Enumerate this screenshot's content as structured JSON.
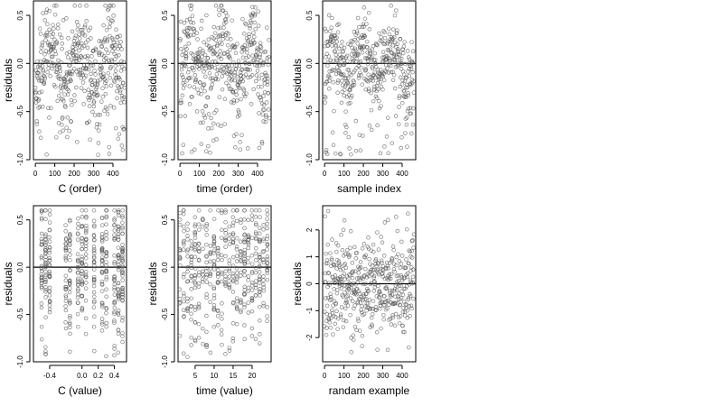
{
  "chart_data": [
    {
      "type": "scatter",
      "xlabel": "C (order)",
      "ylabel": "residuals",
      "xlim": [
        -10,
        470
      ],
      "ylim": [
        -1.0,
        0.65
      ],
      "xticks": [
        0,
        100,
        200,
        300,
        400
      ],
      "xticklabels": [
        "0",
        "100",
        "200",
        "300",
        "400"
      ],
      "yticks": [
        -1.0,
        -0.5,
        0.0,
        0.5
      ],
      "yticklabels": [
        "-1.0",
        "-0.5",
        "0.0",
        "0.5"
      ],
      "hline": 0,
      "n_points": 460,
      "pattern": "smooth",
      "x_range": [
        0,
        460
      ],
      "y_range": [
        -0.95,
        0.6
      ]
    },
    {
      "type": "scatter",
      "xlabel": "time (order)",
      "ylabel": "residuals",
      "xlim": [
        -10,
        470
      ],
      "ylim": [
        -1.0,
        0.65
      ],
      "xticks": [
        0,
        100,
        200,
        300,
        400
      ],
      "xticklabels": [
        "0",
        "100",
        "200",
        "300",
        "400"
      ],
      "yticks": [
        -1.0,
        -0.5,
        0.0,
        0.5
      ],
      "yticklabels": [
        "-1.0",
        "-0.5",
        "0.0",
        "0.5"
      ],
      "hline": 0,
      "n_points": 460,
      "pattern": "smooth",
      "x_range": [
        0,
        460
      ],
      "y_range": [
        -0.95,
        0.6
      ]
    },
    {
      "type": "scatter",
      "xlabel": "sample index",
      "ylabel": "residuals",
      "xlim": [
        -10,
        470
      ],
      "ylim": [
        -1.0,
        0.65
      ],
      "xticks": [
        0,
        100,
        200,
        300,
        400
      ],
      "xticklabels": [
        "0",
        "100",
        "200",
        "300",
        "400"
      ],
      "yticks": [
        -1.0,
        -0.5,
        0.0,
        0.5
      ],
      "yticklabels": [
        "-1.0",
        "-0.5",
        "0.0",
        "0.5"
      ],
      "hline": 0,
      "n_points": 460,
      "pattern": "clustered",
      "x_range": [
        0,
        460
      ],
      "y_range": [
        -0.95,
        0.6
      ]
    },
    {
      "type": "scatter",
      "xlabel": "C (value)",
      "ylabel": "residuals",
      "xlim": [
        -0.6,
        0.55
      ],
      "ylim": [
        -1.0,
        0.65
      ],
      "xticks": [
        -0.4,
        0.0,
        0.2,
        0.4
      ],
      "xticklabels": [
        "-0.4",
        "0.0",
        "0.2",
        "0.4"
      ],
      "yticks": [
        -1.0,
        -0.5,
        0.0,
        0.5
      ],
      "yticklabels": [
        "-1.0",
        "-0.5",
        "0.0",
        "0.5"
      ],
      "hline": 0,
      "n_points": 460,
      "pattern": "columns",
      "x_range": [
        -0.55,
        0.5
      ],
      "x_columns": [
        -0.5,
        -0.45,
        -0.4,
        -0.2,
        -0.15,
        -0.05,
        0.0,
        0.05,
        0.15,
        0.25,
        0.3,
        0.4,
        0.45,
        0.5
      ],
      "y_range": [
        -0.95,
        0.6
      ]
    },
    {
      "type": "scatter",
      "xlabel": "time (value)",
      "ylabel": "residuals",
      "xlim": [
        0.5,
        25
      ],
      "ylim": [
        -1.0,
        0.65
      ],
      "xticks": [
        5,
        10,
        15,
        20
      ],
      "xticklabels": [
        "5",
        "10",
        "15",
        "20"
      ],
      "yticks": [
        -1.0,
        -0.5,
        0.0,
        0.5
      ],
      "yticklabels": [
        "-1.0",
        "-0.5",
        "0.0",
        "0.5"
      ],
      "hline": 0,
      "n_points": 460,
      "pattern": "columns",
      "x_range": [
        1,
        24
      ],
      "x_columns": [
        1,
        2,
        3,
        4,
        5,
        6,
        7,
        8,
        9,
        10,
        11,
        12,
        13,
        14,
        15,
        16,
        17,
        18,
        19,
        20,
        21,
        22,
        23,
        24
      ],
      "y_range": [
        -0.95,
        0.6
      ]
    },
    {
      "type": "scatter",
      "xlabel": "randam example",
      "ylabel": "residuals",
      "xlim": [
        -10,
        470
      ],
      "ylim": [
        -2.9,
        2.9
      ],
      "xticks": [
        0,
        100,
        200,
        300,
        400
      ],
      "xticklabels": [
        "0",
        "100",
        "200",
        "300",
        "400"
      ],
      "yticks": [
        -2,
        -1,
        0,
        1,
        2
      ],
      "yticklabels": [
        "-2",
        "-1",
        "0",
        "1",
        "2"
      ],
      "hline": 0,
      "n_points": 460,
      "pattern": "noise",
      "x_range": [
        0,
        460
      ],
      "y_range": [
        -2.7,
        2.7
      ]
    }
  ]
}
